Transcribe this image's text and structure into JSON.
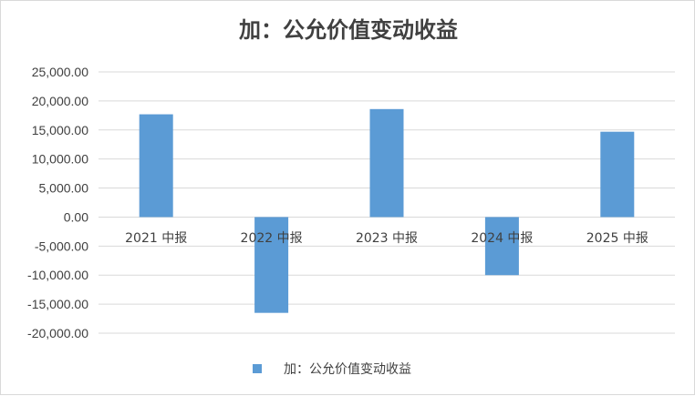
{
  "chart_data": {
    "type": "bar",
    "title": "加：公允价值变动收益",
    "categories": [
      "2021 中报",
      "2022 中报",
      "2023 中报",
      "2024 中报",
      "2025 中报"
    ],
    "series": [
      {
        "name": "加：公允价值变动收益",
        "values": [
          17700,
          -16500,
          18600,
          -10000,
          14700
        ]
      }
    ],
    "ylim": [
      -20000,
      25000
    ],
    "yticks": [
      25000,
      20000,
      15000,
      10000,
      5000,
      0,
      -5000,
      -10000,
      -15000,
      -20000
    ],
    "ytick_labels": [
      "25,000.00",
      "20,000.00",
      "15,000.00",
      "10,000.00",
      "5,000.00",
      "0.00",
      "-5,000.00",
      "-10,000.00",
      "-15,000.00",
      "-20,000.00"
    ],
    "grid": true,
    "legend_position": "bottom",
    "bar_color": "#5b9bd5",
    "grid_color": "#d9d9d9",
    "text_color": "#404040"
  }
}
